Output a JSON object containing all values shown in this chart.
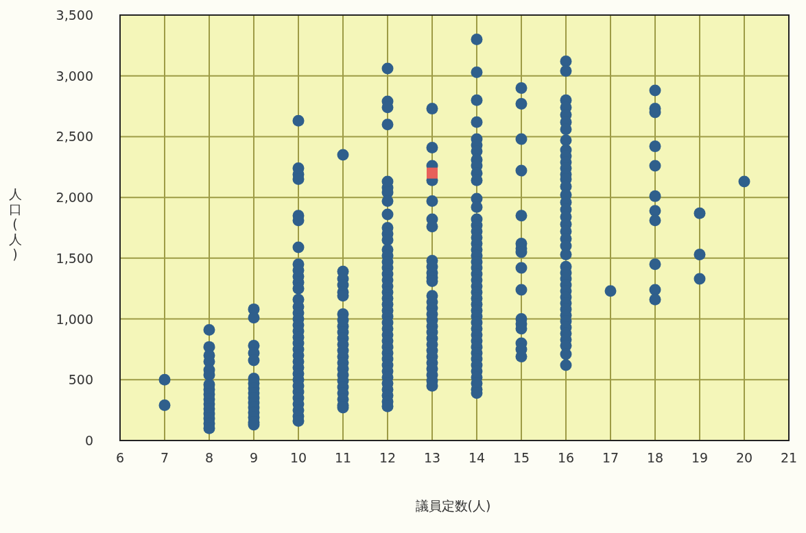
{
  "chart_data": {
    "type": "scatter",
    "xlabel": "議員定数(人)",
    "ylabel": "人口(人)",
    "xlim": [
      6,
      21
    ],
    "xticks": [
      6,
      7,
      8,
      9,
      10,
      11,
      12,
      13,
      14,
      15,
      16,
      17,
      18,
      19,
      20,
      21
    ],
    "ylim": [
      0,
      3500
    ],
    "yticks": [
      0,
      500,
      {
        "value": 1000,
        "label": "1,000"
      },
      {
        "value": 1500,
        "label": "1,500"
      },
      {
        "value": 2000,
        "label": "2,000"
      },
      {
        "value": 2500,
        "label": "2,500"
      },
      {
        "value": 3000,
        "label": "3,000"
      },
      {
        "value": 3500,
        "label": "3,500"
      }
    ],
    "grid": true,
    "marker": "circle",
    "series": [
      {
        "color": "#2f5f8c",
        "x": [
          7,
          7,
          8,
          8,
          8,
          8,
          8,
          8,
          8,
          8,
          8,
          8,
          8,
          8,
          8,
          8,
          8,
          8,
          9,
          9,
          9,
          9,
          9,
          9,
          9,
          9,
          9,
          9,
          9,
          9,
          9,
          9,
          9,
          9,
          10,
          10,
          10,
          10,
          10,
          10,
          10,
          10,
          10,
          10,
          10,
          10,
          10,
          10,
          10,
          10,
          10,
          10,
          10,
          10,
          10,
          10,
          10,
          10,
          10,
          10,
          10,
          10,
          10,
          10,
          10,
          10,
          10,
          11,
          11,
          11,
          11,
          11,
          11,
          11,
          11,
          11,
          11,
          11,
          11,
          11,
          11,
          11,
          11,
          11,
          11,
          11,
          11,
          11,
          11,
          11,
          12,
          12,
          12,
          12,
          12,
          12,
          12,
          12,
          12,
          12,
          12,
          12,
          12,
          12,
          12,
          12,
          12,
          12,
          12,
          12,
          12,
          12,
          12,
          12,
          12,
          12,
          12,
          12,
          12,
          12,
          12,
          12,
          12,
          12,
          12,
          12,
          12,
          12,
          12,
          13,
          13,
          13,
          13,
          13,
          13,
          13,
          13,
          13,
          13,
          13,
          13,
          13,
          13,
          13,
          13,
          13,
          13,
          13,
          13,
          13,
          13,
          13,
          13,
          13,
          13,
          13,
          13,
          14,
          14,
          14,
          14,
          14,
          14,
          14,
          14,
          14,
          14,
          14,
          14,
          14,
          14,
          14,
          14,
          14,
          14,
          14,
          14,
          14,
          14,
          14,
          14,
          14,
          14,
          14,
          14,
          14,
          14,
          14,
          14,
          14,
          14,
          14,
          14,
          14,
          14,
          14,
          14,
          14,
          14,
          14,
          15,
          15,
          15,
          15,
          15,
          15,
          15,
          15,
          15,
          15,
          15,
          15,
          15,
          15,
          15,
          15,
          16,
          16,
          16,
          16,
          16,
          16,
          16,
          16,
          16,
          16,
          16,
          16,
          16,
          16,
          16,
          16,
          16,
          16,
          16,
          16,
          16,
          16,
          16,
          16,
          16,
          16,
          16,
          16,
          16,
          16,
          16,
          16,
          16,
          16,
          16,
          16,
          16,
          16,
          16,
          16,
          17,
          18,
          18,
          18,
          18,
          18,
          18,
          18,
          18,
          18,
          18,
          18,
          19,
          19,
          19,
          20
        ],
        "values": [
          500,
          290,
          910,
          770,
          700,
          650,
          580,
          540,
          460,
          420,
          380,
          340,
          300,
          260,
          220,
          180,
          140,
          100,
          1080,
          1010,
          780,
          720,
          660,
          510,
          470,
          430,
          390,
          350,
          310,
          270,
          230,
          190,
          150,
          130,
          2630,
          2240,
          2190,
          2150,
          1850,
          1810,
          1590,
          1450,
          1400,
          1350,
          1300,
          1250,
          1160,
          1100,
          1050,
          1000,
          950,
          900,
          850,
          800,
          750,
          700,
          650,
          600,
          550,
          500,
          450,
          400,
          350,
          300,
          250,
          200,
          160,
          2350,
          1390,
          1330,
          1280,
          1220,
          1190,
          1040,
          990,
          940,
          890,
          840,
          790,
          740,
          690,
          640,
          590,
          540,
          490,
          440,
          390,
          340,
          290,
          270,
          3060,
          2790,
          2740,
          2600,
          2130,
          2080,
          2040,
          1970,
          1860,
          1750,
          1700,
          1650,
          1570,
          1520,
          1470,
          1420,
          1370,
          1320,
          1270,
          1220,
          1170,
          1120,
          1070,
          1020,
          970,
          920,
          870,
          820,
          770,
          720,
          670,
          620,
          570,
          520,
          470,
          420,
          370,
          320,
          280,
          2730,
          2410,
          2260,
          2140,
          1970,
          1820,
          1760,
          1480,
          1430,
          1380,
          1340,
          1310,
          1190,
          1140,
          1090,
          1040,
          990,
          940,
          890,
          840,
          790,
          740,
          690,
          640,
          590,
          540,
          490,
          450,
          3300,
          3030,
          2800,
          2620,
          2480,
          2430,
          2380,
          2310,
          2260,
          2200,
          2140,
          1990,
          1920,
          1820,
          1770,
          1720,
          1670,
          1620,
          1570,
          1520,
          1470,
          1420,
          1370,
          1320,
          1270,
          1220,
          1170,
          1120,
          1070,
          1020,
          970,
          920,
          870,
          820,
          770,
          720,
          670,
          620,
          570,
          520,
          470,
          420,
          390,
          2900,
          2770,
          2480,
          2220,
          1850,
          1620,
          1580,
          1550,
          1420,
          1240,
          1000,
          960,
          920,
          800,
          750,
          690,
          3120,
          3040,
          2800,
          2740,
          2680,
          2620,
          2560,
          2470,
          2390,
          2340,
          2290,
          2240,
          2190,
          2150,
          2090,
          2020,
          1960,
          1900,
          1840,
          1780,
          1720,
          1660,
          1600,
          1530,
          1430,
          1380,
          1330,
          1280,
          1230,
          1180,
          1130,
          1080,
          1030,
          980,
          930,
          880,
          830,
          780,
          710,
          620,
          1230,
          2880,
          2730,
          2700,
          2420,
          2260,
          2010,
          1890,
          1810,
          1450,
          1240,
          1160,
          1870,
          1530,
          1330,
          2130
        ]
      },
      {
        "color": "#e8605a",
        "marker": "square",
        "x": [
          13
        ],
        "values": [
          2200
        ]
      }
    ]
  }
}
